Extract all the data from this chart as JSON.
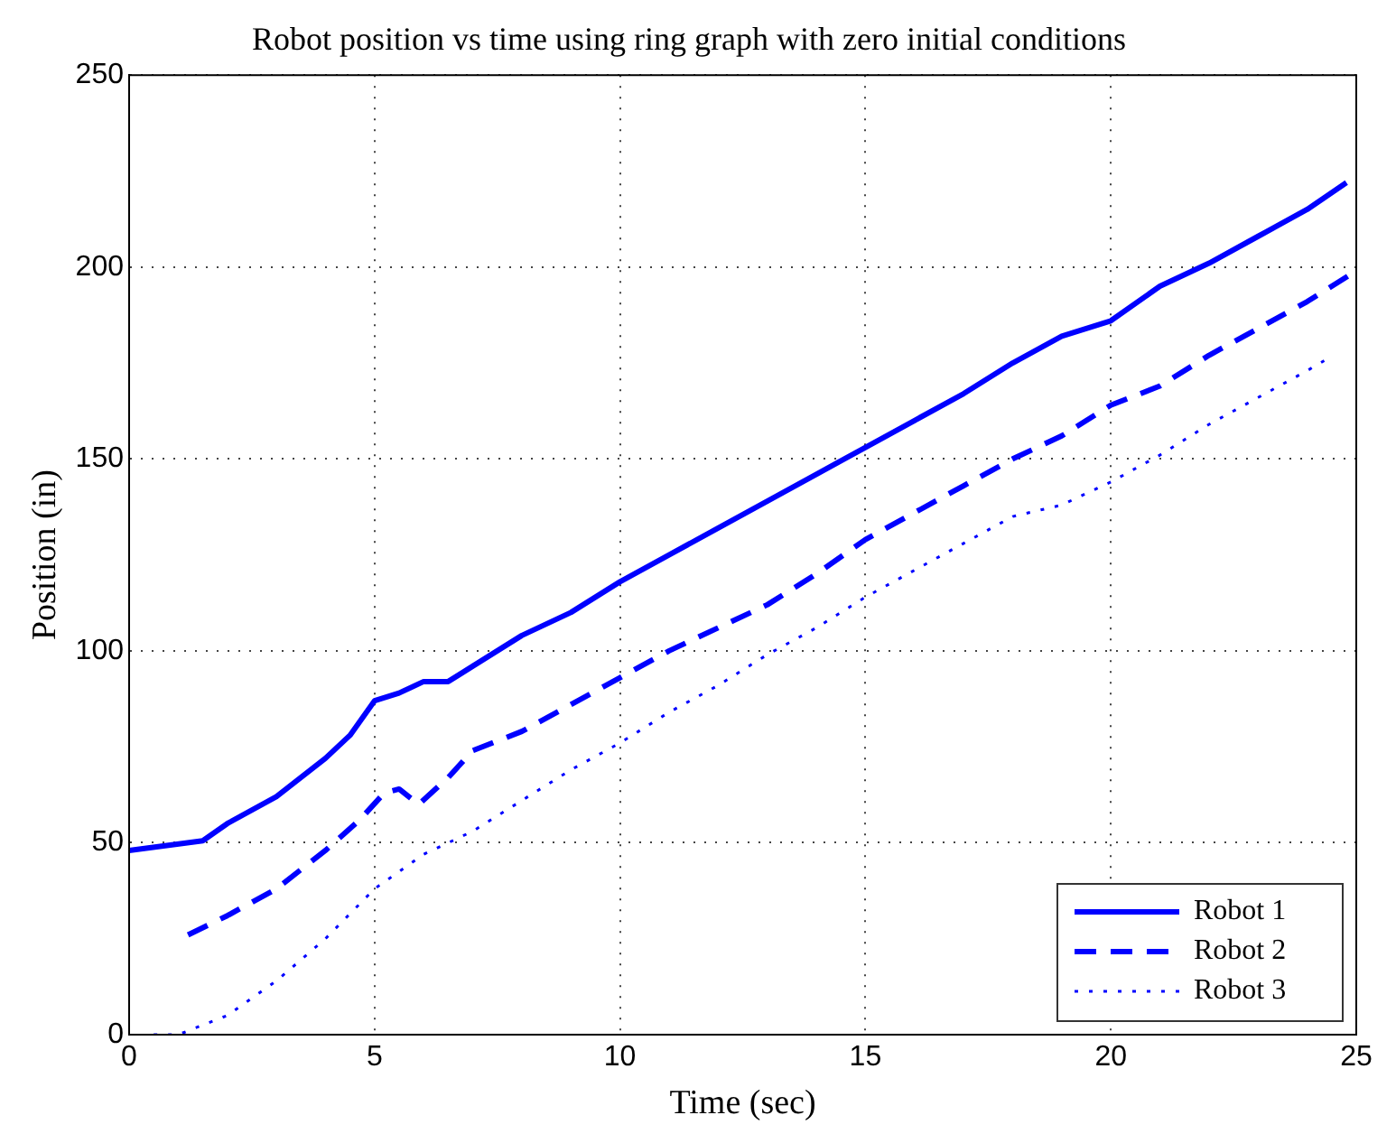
{
  "chart_data": {
    "type": "line",
    "title": "Robot position vs time using ring graph with zero initial conditions",
    "xlabel": "Time (sec)",
    "ylabel": "Position (in)",
    "xlim": [
      0,
      25
    ],
    "xticks": [
      0,
      5,
      10,
      15,
      20,
      25
    ],
    "ylim": [
      0,
      250
    ],
    "yticks": [
      0,
      50,
      100,
      150,
      200,
      250
    ],
    "grid": true,
    "legend": "bottom right",
    "marker": "none",
    "series": [
      {
        "name": "Robot 1",
        "color": "#0000ff",
        "line_style": "solid",
        "x": [
          0,
          1.5,
          2,
          3,
          4,
          4.5,
          5,
          5.5,
          6,
          6.5,
          7,
          8,
          9,
          10,
          11,
          12,
          13,
          14,
          15,
          16,
          17,
          18,
          19,
          20,
          21,
          22,
          23,
          24,
          24.8
        ],
        "values": [
          48,
          50.5,
          55,
          62,
          72,
          78,
          87,
          89,
          92,
          92,
          96,
          104,
          110,
          118,
          125,
          132,
          139,
          146,
          153,
          160,
          167,
          175,
          182,
          186,
          195,
          201,
          208,
          215,
          222
        ]
      },
      {
        "name": "Robot 2",
        "color": "#0000ff",
        "line_style": "dashed",
        "x": [
          1.2,
          2,
          3,
          4,
          4.7,
          5.2,
          5.5,
          5.9,
          6.5,
          7,
          8,
          9,
          10,
          11,
          12,
          13,
          14,
          15,
          16,
          17,
          18,
          19,
          20,
          21,
          22,
          23,
          24,
          25
        ],
        "values": [
          26,
          31,
          38,
          48,
          56,
          63,
          64,
          60,
          67,
          74,
          79,
          86,
          93,
          100,
          106,
          112,
          120,
          129,
          136,
          143,
          150,
          156,
          164,
          169,
          177,
          184,
          191,
          199
        ]
      },
      {
        "name": "Robot 3",
        "color": "#0000ff",
        "line_style": "dotted",
        "x": [
          0.5,
          1,
          2,
          3,
          4,
          5,
          6,
          7,
          8,
          9,
          10,
          11,
          12,
          13,
          14,
          15,
          16,
          17,
          18,
          19,
          20,
          21,
          22,
          23,
          24,
          24.4
        ],
        "values": [
          0,
          0,
          5,
          14,
          25,
          38,
          47,
          53,
          61,
          69,
          76,
          84,
          91,
          99,
          106,
          114,
          121,
          128,
          135,
          138,
          144,
          151,
          159,
          166,
          173,
          176
        ]
      }
    ]
  }
}
